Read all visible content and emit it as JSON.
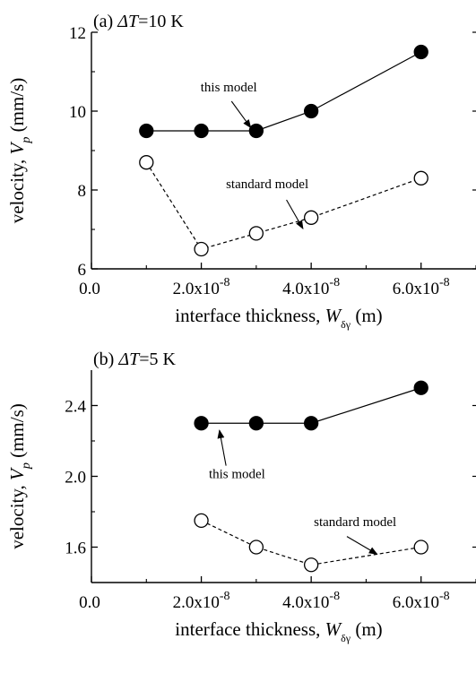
{
  "chart_data": [
    {
      "type": "line",
      "panel_label": "(a)",
      "title_var": "ΔT",
      "title_value": "=10 K",
      "xlabel": "interface thickness, W",
      "xlabel_sub": "δγ",
      "xlabel_unit": " (m)",
      "ylabel": "velocity, V",
      "ylabel_sub": "p",
      "ylabel_unit": " (mm/s)",
      "xlim": [
        0,
        7e-08
      ],
      "ylim": [
        6,
        12
      ],
      "x_ticks": [
        {
          "value": 0,
          "mantissa": "0.0",
          "exp": ""
        },
        {
          "value": 2e-08,
          "mantissa": "2.0x10",
          "exp": "-8"
        },
        {
          "value": 4e-08,
          "mantissa": "4.0x10",
          "exp": "-8"
        },
        {
          "value": 6e-08,
          "mantissa": "6.0x10",
          "exp": "-8"
        }
      ],
      "y_ticks": [
        {
          "value": 6,
          "label": "6"
        },
        {
          "value": 8,
          "label": "8"
        },
        {
          "value": 10,
          "label": "10"
        },
        {
          "value": 12,
          "label": "12"
        }
      ],
      "series": [
        {
          "name": "this model",
          "marker": "filled-circle",
          "line": "solid",
          "x": [
            1e-08,
            2e-08,
            3e-08,
            4e-08,
            6e-08
          ],
          "y": [
            9.5,
            9.5,
            9.5,
            10.0,
            11.5
          ]
        },
        {
          "name": "standard model",
          "marker": "open-circle",
          "line": "dashed",
          "x": [
            1e-08,
            2e-08,
            3e-08,
            4e-08,
            6e-08
          ],
          "y": [
            8.7,
            6.5,
            6.9,
            7.3,
            8.3
          ]
        }
      ],
      "annotations": [
        {
          "text": "this model",
          "text_at": [
            2.5e-08,
            10.5
          ],
          "arrow_from": [
            2.55e-08,
            10.25
          ],
          "arrow_to": [
            2.9e-08,
            9.58
          ]
        },
        {
          "text": "standard model",
          "text_at": [
            3.2e-08,
            8.05
          ],
          "arrow_from": [
            3.55e-08,
            7.75
          ],
          "arrow_to": [
            3.85e-08,
            7.02
          ]
        }
      ]
    },
    {
      "type": "line",
      "panel_label": "(b)",
      "title_var": "ΔT",
      "title_value": "=5 K",
      "xlabel": "interface thickness, W",
      "xlabel_sub": "δγ",
      "xlabel_unit": " (m)",
      "ylabel": "velocity, V",
      "ylabel_sub": "p",
      "ylabel_unit": " (mm/s)",
      "xlim": [
        0,
        7e-08
      ],
      "ylim": [
        1.4,
        2.6
      ],
      "x_ticks": [
        {
          "value": 0,
          "mantissa": "0.0",
          "exp": ""
        },
        {
          "value": 2e-08,
          "mantissa": "2.0x10",
          "exp": "-8"
        },
        {
          "value": 4e-08,
          "mantissa": "4.0x10",
          "exp": "-8"
        },
        {
          "value": 6e-08,
          "mantissa": "6.0x10",
          "exp": "-8"
        }
      ],
      "y_ticks": [
        {
          "value": 1.6,
          "label": "1.6"
        },
        {
          "value": 2.0,
          "label": "2.0"
        },
        {
          "value": 2.4,
          "label": "2.4"
        }
      ],
      "series": [
        {
          "name": "this model",
          "marker": "filled-circle",
          "line": "solid",
          "x": [
            2e-08,
            3e-08,
            4e-08,
            6e-08
          ],
          "y": [
            2.3,
            2.3,
            2.3,
            2.5
          ]
        },
        {
          "name": "standard model",
          "marker": "open-circle",
          "line": "dashed",
          "x": [
            2e-08,
            3e-08,
            4e-08,
            6e-08
          ],
          "y": [
            1.75,
            1.6,
            1.5,
            1.6
          ]
        }
      ],
      "annotations": [
        {
          "text": "this model",
          "text_at": [
            2.65e-08,
            1.99
          ],
          "arrow_from": [
            2.45e-08,
            2.06
          ],
          "arrow_to": [
            2.33e-08,
            2.26
          ]
        },
        {
          "text": "standard model",
          "text_at": [
            4.8e-08,
            1.72
          ],
          "arrow_from": [
            4.65e-08,
            1.66
          ],
          "arrow_to": [
            5.2e-08,
            1.56
          ]
        }
      ]
    }
  ]
}
